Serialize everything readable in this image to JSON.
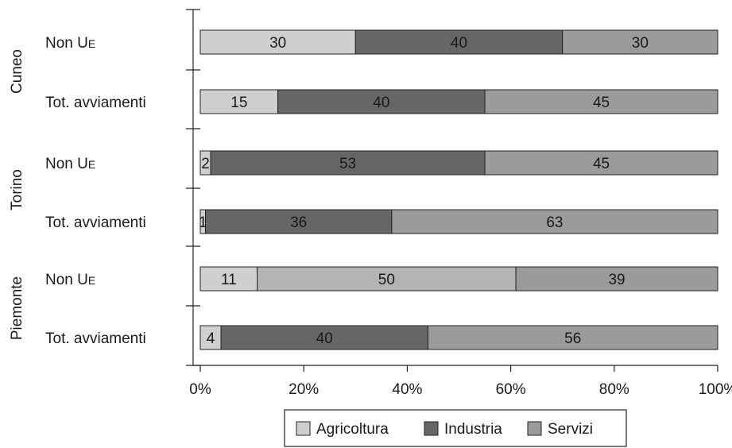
{
  "chart_data": {
    "type": "bar",
    "orientation": "horizontal",
    "stacked": true,
    "groups": [
      "Cuneo",
      "Torino",
      "Piemonte"
    ],
    "categories": [
      "Non UE",
      "Tot. avviamenti",
      "Non UE",
      "Tot. avviamenti",
      "Non UE",
      "Tot. avviamenti"
    ],
    "series": [
      {
        "name": "Agricoltura",
        "values": [
          30,
          15,
          2,
          1,
          11,
          4
        ],
        "labels": [
          "30",
          "15",
          "2",
          "1",
          "11",
          "4"
        ]
      },
      {
        "name": "Industria",
        "values": [
          40,
          40,
          53,
          36,
          50,
          40
        ],
        "labels": [
          "40",
          "40",
          "53",
          "36",
          "50",
          "40"
        ]
      },
      {
        "name": "Servizi",
        "values": [
          30,
          45,
          45,
          63,
          39,
          56
        ],
        "labels": [
          "30",
          "45",
          "45",
          "63",
          "39",
          "56"
        ]
      }
    ],
    "series_colors": [
      "#cfcfcf",
      "#666666",
      "#9b9b9b"
    ],
    "industria_alt_color": "#b3b3b3",
    "xlim": [
      0,
      100
    ],
    "x_ticks": [
      "0%",
      "20%",
      "40%",
      "60%",
      "80%",
      "100%"
    ],
    "grid": false,
    "legend_position": "bottom"
  }
}
